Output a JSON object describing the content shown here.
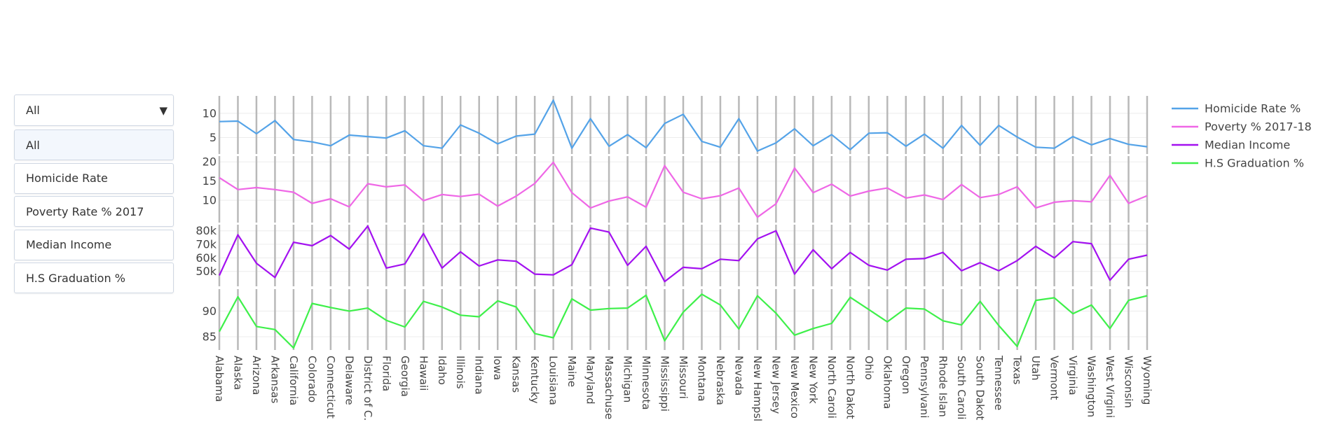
{
  "filter": {
    "selected": "All",
    "options": [
      "All",
      "Homicide Rate",
      "Poverty Rate % 2017",
      "Median Income",
      "H.S Graduation %"
    ]
  },
  "chart_data": {
    "type": "line",
    "layout": "stacked-subplots-shared-x",
    "categories": [
      "Alabama",
      "Alaska",
      "Arizona",
      "Arkansas",
      "California",
      "Colorado",
      "Connecticut",
      "Delaware",
      "District of C.",
      "Florida",
      "Georgia",
      "Hawaii",
      "Idaho",
      "Illinois",
      "Indiana",
      "Iowa",
      "Kansas",
      "Kentucky",
      "Louisiana",
      "Maine",
      "Maryland",
      "Massachuse",
      "Michigan",
      "Minnesota",
      "Mississippi",
      "Missouri",
      "Montana",
      "Nebraska",
      "Nevada",
      "New Hampsl",
      "New Jersey",
      "New Mexico",
      "New York",
      "North Caroli",
      "North Dakot",
      "Ohio",
      "Oklahoma",
      "Oregon",
      "Pennsylvani",
      "Rhode Islan",
      "South Caroli",
      "South Dakot",
      "Tennessee",
      "Texas",
      "Utah",
      "Vermont",
      "Virginia",
      "Washington",
      "West Virgini",
      "Wisconsin",
      "Wyoming"
    ],
    "legend_position": "right",
    "grid": true,
    "series": [
      {
        "name": "Homicide Rate %",
        "color": "#54a3e8",
        "yticks": [
          5,
          10
        ],
        "ylim": [
          1.6,
          13.6
        ],
        "values": [
          8.3,
          8.4,
          5.8,
          8.5,
          4.6,
          4.1,
          3.3,
          5.5,
          5.2,
          4.9,
          6.4,
          3.3,
          2.8,
          7.6,
          5.9,
          3.7,
          5.3,
          5.7,
          12.7,
          2.8,
          8.9,
          3.2,
          5.6,
          2.9,
          7.9,
          9.8,
          4.2,
          3,
          8.9,
          2.2,
          3.9,
          6.8,
          3.3,
          5.6,
          2.5,
          5.9,
          6,
          3.2,
          5.7,
          2.8,
          7.5,
          3.4,
          7.5,
          5.1,
          3,
          2.8,
          5.2,
          3.5,
          4.8,
          3.6,
          3.1
        ]
      },
      {
        "name": "Poverty % 2017-18",
        "color": "#ef67e6",
        "yticks": [
          10,
          15,
          20
        ],
        "ylim": [
          4.2,
          21.5
        ],
        "values": [
          15.9,
          12.8,
          13.3,
          12.8,
          12.1,
          9.2,
          10.4,
          8.3,
          14.3,
          13.5,
          14,
          9.9,
          11.5,
          11,
          11.6,
          8.5,
          11.1,
          14.4,
          19.9,
          12,
          8,
          9.8,
          10.9,
          8.2,
          19,
          12.1,
          10.4,
          11.2,
          13.2,
          5.6,
          9.1,
          18.4,
          12,
          14.2,
          11.1,
          12.4,
          13.2,
          10.6,
          11.4,
          10.2,
          14.1,
          10.7,
          11.5,
          13.5,
          8,
          9.5,
          9.9,
          9.6,
          16.5,
          9.2,
          11.2
        ]
      },
      {
        "name": "Median Income",
        "color": "#a311f0",
        "yticks": [
          50000,
          60000,
          70000,
          80000
        ],
        "yticklabels": [
          "50k",
          "60k",
          "70k",
          "80k"
        ],
        "ylim": [
          39000,
          84500
        ],
        "values": [
          47000,
          77000,
          56000,
          45500,
          71500,
          69000,
          76500,
          66500,
          83500,
          52500,
          55500,
          78000,
          52500,
          64500,
          54000,
          58500,
          57500,
          48000,
          47500,
          55000,
          82000,
          79000,
          54500,
          68500,
          42500,
          53000,
          52000,
          59000,
          58000,
          74000,
          80000,
          48000,
          66000,
          52000,
          64000,
          54500,
          51000,
          59000,
          59500,
          64000,
          50500,
          56500,
          50500,
          58000,
          68500,
          60000,
          72000,
          70500,
          43500,
          59000,
          62000
        ]
      },
      {
        "name": "H.S Graduation %",
        "color": "#3ef04a",
        "yticks": [
          85,
          90
        ],
        "ylim": [
          82.4,
          94.3
        ],
        "values": [
          86,
          92.8,
          87,
          86.4,
          82.8,
          91.5,
          90.7,
          90,
          90.6,
          88.2,
          86.9,
          91.9,
          90.8,
          89.2,
          88.9,
          92,
          90.8,
          85.6,
          84.8,
          92.4,
          90.2,
          90.5,
          90.6,
          93.1,
          84.2,
          89.8,
          93.3,
          91.2,
          86.5,
          93,
          89.6,
          85.3,
          86.6,
          87.6,
          92.7,
          90.3,
          87.9,
          90.6,
          90.4,
          88.1,
          87.3,
          91.9,
          87.2,
          83.1,
          92.1,
          92.6,
          89.5,
          91.2,
          86.6,
          92.1,
          93
        ]
      }
    ]
  }
}
